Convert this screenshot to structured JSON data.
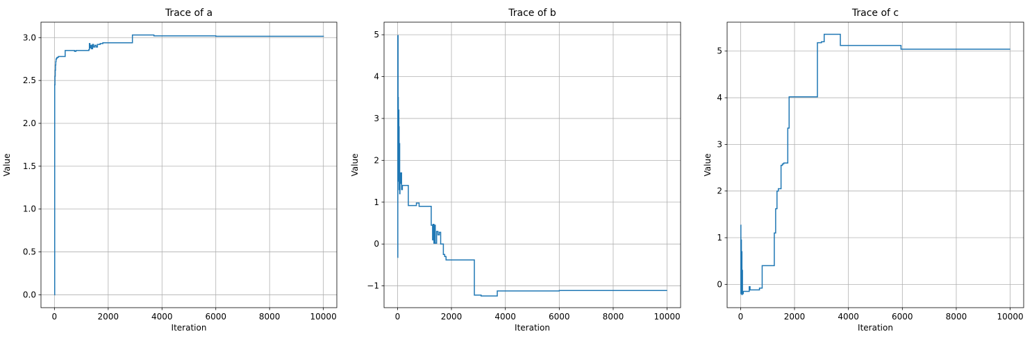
{
  "chart_data": [
    {
      "type": "line",
      "title": "Trace of a",
      "xlabel": "Iteration",
      "ylabel": "Value",
      "xlim": [
        -500,
        10500
      ],
      "ylim": [
        -0.15,
        3.18
      ],
      "xticks": [
        0,
        2000,
        4000,
        6000,
        8000,
        10000
      ],
      "xtick_labels": [
        "0",
        "2000",
        "4000",
        "6000",
        "8000",
        "10000"
      ],
      "yticks": [
        0.0,
        0.5,
        1.0,
        1.5,
        2.0,
        2.5,
        3.0
      ],
      "ytick_labels": [
        "0.0",
        "0.5",
        "1.0",
        "1.5",
        "2.0",
        "2.5",
        "3.0"
      ],
      "grid": true,
      "color": "#1f77b4",
      "series": [
        {
          "x": [
            0,
            10,
            20,
            30,
            40,
            50,
            60,
            80,
            100,
            150,
            400,
            420,
            750,
            800,
            1000,
            1280,
            1300,
            1320,
            1350,
            1380,
            1420,
            1450,
            1500,
            1550,
            1600,
            1700,
            1800,
            2900,
            3700,
            6000,
            10000
          ],
          "y": [
            0.0,
            2.45,
            2.55,
            2.62,
            2.68,
            2.72,
            2.75,
            2.76,
            2.77,
            2.78,
            2.85,
            2.85,
            2.84,
            2.85,
            2.85,
            2.86,
            2.93,
            2.88,
            2.91,
            2.87,
            2.92,
            2.89,
            2.91,
            2.89,
            2.92,
            2.93,
            2.94,
            3.03,
            3.02,
            3.015,
            3.01
          ],
          "step": true
        }
      ]
    },
    {
      "type": "line",
      "title": "Trace of b",
      "xlabel": "Iteration",
      "ylabel": "Value",
      "xlim": [
        -500,
        10500
      ],
      "ylim": [
        -1.52,
        5.3
      ],
      "xticks": [
        0,
        2000,
        4000,
        6000,
        8000,
        10000
      ],
      "xtick_labels": [
        "0",
        "2000",
        "4000",
        "6000",
        "8000",
        "10000"
      ],
      "yticks": [
        -1,
        0,
        1,
        2,
        3,
        4,
        5
      ],
      "ytick_labels": [
        "−1",
        "0",
        "1",
        "2",
        "3",
        "4",
        "5"
      ],
      "grid": true,
      "color": "#1f77b4",
      "series": [
        {
          "x": [
            0,
            10,
            20,
            30,
            40,
            50,
            60,
            70,
            80,
            90,
            100,
            120,
            150,
            180,
            200,
            250,
            300,
            400,
            500,
            700,
            800,
            1000,
            1250,
            1300,
            1320,
            1350,
            1380,
            1400,
            1450,
            1500,
            1550,
            1600,
            1650,
            1700,
            1750,
            1800,
            2850,
            3100,
            3700,
            6000,
            10000
          ],
          "y": [
            -0.32,
            4.98,
            3.5,
            1.5,
            3.2,
            2.8,
            1.3,
            2.4,
            1.2,
            1.7,
            1.45,
            1.7,
            1.3,
            1.4,
            1.4,
            1.4,
            1.4,
            0.92,
            0.92,
            0.98,
            0.9,
            0.9,
            0.45,
            0.1,
            0.47,
            0.02,
            0.45,
            0.02,
            0.3,
            0.22,
            0.28,
            0.0,
            0.0,
            -0.25,
            -0.3,
            -0.38,
            -1.22,
            -1.24,
            -1.12,
            -1.11,
            -1.11
          ],
          "step": true
        }
      ]
    },
    {
      "type": "line",
      "title": "Trace of c",
      "xlabel": "Iteration",
      "ylabel": "Value",
      "xlim": [
        -500,
        10500
      ],
      "ylim": [
        -0.5,
        5.62
      ],
      "xticks": [
        0,
        2000,
        4000,
        6000,
        8000,
        10000
      ],
      "xtick_labels": [
        "0",
        "2000",
        "4000",
        "6000",
        "8000",
        "10000"
      ],
      "yticks": [
        0,
        1,
        2,
        3,
        4,
        5
      ],
      "ytick_labels": [
        "0",
        "1",
        "2",
        "3",
        "4",
        "5"
      ],
      "grid": true,
      "color": "#1f77b4",
      "series": [
        {
          "x": [
            0,
            10,
            20,
            30,
            40,
            50,
            60,
            70,
            80,
            100,
            130,
            160,
            200,
            300,
            320,
            350,
            700,
            800,
            1250,
            1300,
            1350,
            1400,
            1500,
            1550,
            1600,
            1750,
            1800,
            2850,
            3000,
            3100,
            3700,
            5950,
            10000
          ],
          "y": [
            1.27,
            -0.2,
            0.95,
            -0.15,
            0.7,
            -0.22,
            0.3,
            -0.15,
            -0.2,
            -0.15,
            -0.15,
            -0.15,
            -0.15,
            -0.15,
            -0.05,
            -0.12,
            -0.08,
            0.4,
            1.1,
            1.62,
            2.0,
            2.05,
            2.55,
            2.58,
            2.6,
            3.35,
            4.02,
            5.18,
            5.2,
            5.36,
            5.12,
            5.04,
            5.04
          ],
          "step": true
        }
      ]
    }
  ]
}
